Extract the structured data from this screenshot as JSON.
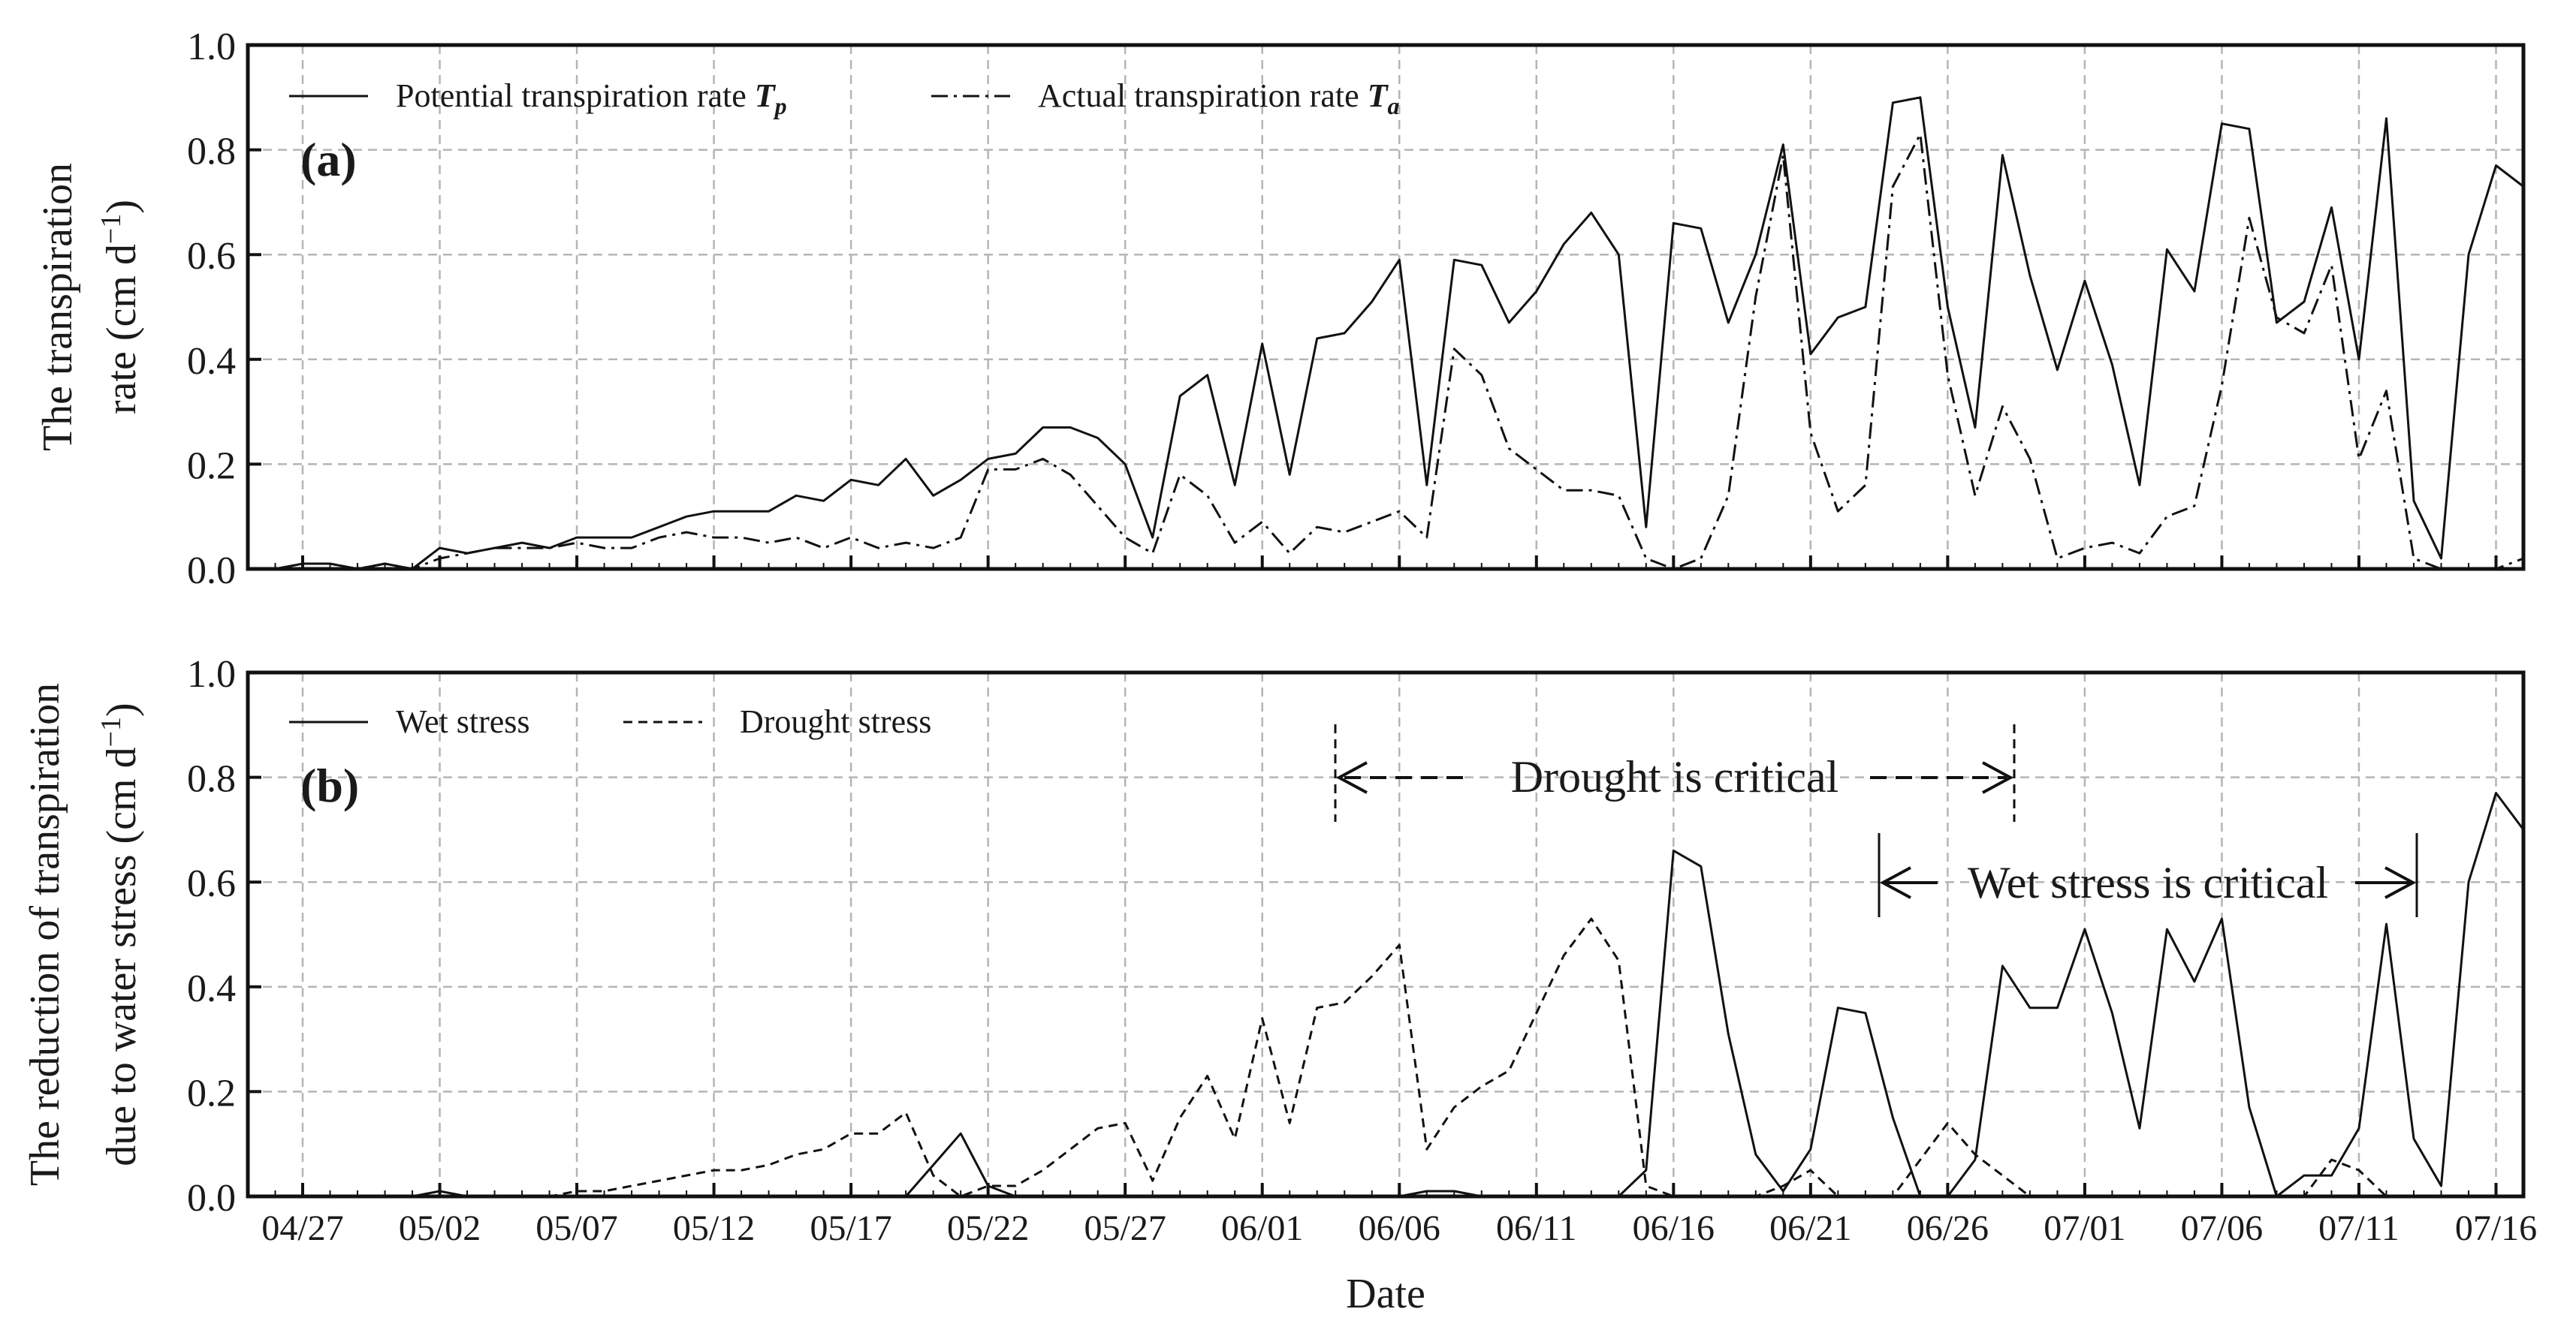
{
  "figure": {
    "xlabel": "Date"
  },
  "chart_data": [
    {
      "type": "line",
      "panel_label": "(a)",
      "ylabel_line1": "The transpiration",
      "ylabel_line2": "rate (cm d",
      "ylabel_sup": "−1",
      "ylabel_close": ")",
      "ylim": [
        0,
        1.0
      ],
      "yticks": [
        "0.0",
        "0.2",
        "0.4",
        "0.6",
        "0.8",
        "1.0"
      ],
      "grid": true,
      "legend_position": "top-left",
      "series": [
        {
          "name": "Tp",
          "legend_text": "Potential transpiration rate ",
          "legend_symbol": "T",
          "legend_sub": "p",
          "style": "solid",
          "values": [
            0,
            0,
            0.01,
            0.01,
            0,
            0.01,
            0,
            0.04,
            0.03,
            0.04,
            0.05,
            0.04,
            0.06,
            0.06,
            0.06,
            0.08,
            0.1,
            0.11,
            0.11,
            0.11,
            0.14,
            0.13,
            0.17,
            0.16,
            0.21,
            0.14,
            0.17,
            0.21,
            0.22,
            0.27,
            0.27,
            0.25,
            0.2,
            0.06,
            0.33,
            0.37,
            0.16,
            0.43,
            0.18,
            0.44,
            0.45,
            0.51,
            0.59,
            0.16,
            0.59,
            0.58,
            0.47,
            0.53,
            0.62,
            0.68,
            0.6,
            0.08,
            0.66,
            0.65,
            0.47,
            0.6,
            0.81,
            0.41,
            0.48,
            0.5,
            0.89,
            0.9,
            0.5,
            0.27,
            0.79,
            0.56,
            0.38,
            0.55,
            0.39,
            0.16,
            0.61,
            0.53,
            0.85,
            0.84,
            0.47,
            0.51,
            0.69,
            0.4,
            0.86,
            0.13,
            0.02,
            0.6,
            0.77,
            0.73
          ]
        },
        {
          "name": "Ta",
          "legend_text": "Actual transpiration rate ",
          "legend_symbol": "T",
          "legend_sub": "a",
          "style": "dashdot",
          "values": [
            0,
            0,
            0.01,
            0.01,
            0,
            0.01,
            0,
            0.02,
            0.03,
            0.04,
            0.04,
            0.04,
            0.05,
            0.04,
            0.04,
            0.06,
            0.07,
            0.06,
            0.06,
            0.05,
            0.06,
            0.04,
            0.06,
            0.04,
            0.05,
            0.04,
            0.06,
            0.19,
            0.19,
            0.21,
            0.18,
            0.12,
            0.06,
            0.03,
            0.18,
            0.14,
            0.05,
            0.09,
            0.03,
            0.08,
            0.07,
            0.09,
            0.11,
            0.06,
            0.42,
            0.37,
            0.23,
            0.19,
            0.15,
            0.15,
            0.14,
            0.02,
            0,
            0.02,
            0.14,
            0.52,
            0.79,
            0.26,
            0.11,
            0.16,
            0.73,
            0.83,
            0.37,
            0.14,
            0.31,
            0.21,
            0.02,
            0.04,
            0.05,
            0.03,
            0.1,
            0.12,
            0.35,
            0.67,
            0.48,
            0.45,
            0.58,
            0.21,
            0.34,
            0.02,
            0,
            0,
            0,
            0.02
          ]
        }
      ]
    },
    {
      "type": "line",
      "panel_label": "(b)",
      "ylabel_line1": "The reduction of transpiration",
      "ylabel_line2": "due to water stress (cm d",
      "ylabel_sup": "−1",
      "ylabel_close": ")",
      "ylim": [
        0,
        1.0
      ],
      "yticks": [
        "0.0",
        "0.2",
        "0.4",
        "0.6",
        "0.8",
        "1.0"
      ],
      "grid": true,
      "legend_position": "top-left",
      "series": [
        {
          "name": "Wet stress",
          "legend_text": "Wet stress",
          "style": "solid",
          "values": [
            0,
            0,
            0,
            0,
            0,
            0,
            0,
            0.01,
            0,
            0,
            0,
            0,
            0,
            0,
            0,
            0,
            0,
            0,
            0,
            0,
            0,
            0,
            0,
            0,
            0,
            0.06,
            0.12,
            0.02,
            0,
            0,
            0,
            0,
            0,
            0,
            0,
            0,
            0,
            0,
            0,
            0,
            0,
            0,
            0,
            0.01,
            0.01,
            0,
            0,
            0,
            0,
            0,
            0,
            0.05,
            0.66,
            0.63,
            0.31,
            0.08,
            0.01,
            0.09,
            0.36,
            0.35,
            0.15,
            0,
            0,
            0.07,
            0.44,
            0.36,
            0.36,
            0.51,
            0.35,
            0.13,
            0.51,
            0.41,
            0.53,
            0.17,
            0,
            0.04,
            0.04,
            0.13,
            0.52,
            0.11,
            0.02,
            0.6,
            0.77,
            0.7
          ]
        },
        {
          "name": "Drought stress",
          "legend_text": "Drought stress",
          "style": "dashed",
          "values": [
            0,
            0,
            0,
            0,
            0,
            0,
            0,
            0,
            0,
            0,
            0,
            0,
            0.01,
            0.01,
            0.02,
            0.03,
            0.04,
            0.05,
            0.05,
            0.06,
            0.08,
            0.09,
            0.12,
            0.12,
            0.16,
            0.04,
            0,
            0.02,
            0.02,
            0.05,
            0.09,
            0.13,
            0.14,
            0.03,
            0.15,
            0.23,
            0.11,
            0.34,
            0.14,
            0.36,
            0.37,
            0.42,
            0.48,
            0.09,
            0.17,
            0.21,
            0.24,
            0.35,
            0.46,
            0.53,
            0.45,
            0.02,
            0,
            0,
            0,
            0,
            0.02,
            0.05,
            0,
            0,
            0,
            0.07,
            0.14,
            0.08,
            0.04,
            0,
            0,
            0,
            0,
            0,
            0,
            0,
            0,
            0,
            0,
            0,
            0.07,
            0.05,
            0,
            0,
            0,
            0,
            0,
            0
          ]
        }
      ],
      "annotations": [
        {
          "text": "Drought is critical",
          "from_date": "06/03",
          "to_date": "06/28"
        },
        {
          "text": "Wet stress is critical",
          "from_date": "06/23",
          "to_date": "07/13"
        }
      ]
    }
  ],
  "xaxis": {
    "tick_labels": [
      "04/27",
      "05/02",
      "05/07",
      "05/12",
      "05/17",
      "05/22",
      "05/27",
      "06/01",
      "06/06",
      "06/11",
      "06/16",
      "06/21",
      "06/26",
      "07/01",
      "07/06",
      "07/11",
      "07/16"
    ],
    "tick_day_index": [
      2,
      7,
      12,
      17,
      22,
      27,
      32,
      37,
      42,
      47,
      52,
      57,
      62,
      67,
      72,
      77,
      82
    ],
    "day_count": 84
  }
}
